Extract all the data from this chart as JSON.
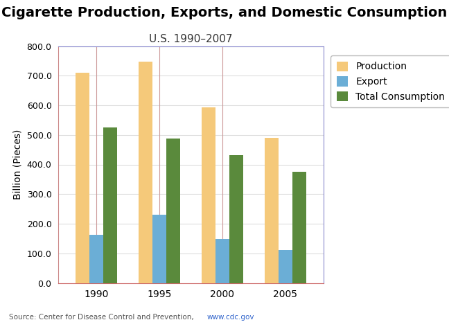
{
  "title_line1": "Cigarette Production, Exports, and Domestic Consumption",
  "title_line2": "U.S. 1990–2007",
  "years": [
    1990,
    1995,
    2000,
    2005
  ],
  "production": [
    710,
    747,
    594,
    490
  ],
  "export": [
    163,
    231,
    148,
    112
  ],
  "total_consumption": [
    525,
    487,
    432,
    375
  ],
  "bar_colors": {
    "production": "#F5C97A",
    "export": "#6BAED6",
    "total_consumption": "#5A8A3C"
  },
  "ylabel": "Billion (Pieces)",
  "ylim": [
    0,
    800
  ],
  "yticks": [
    0,
    100,
    200,
    300,
    400,
    500,
    600,
    700,
    800
  ],
  "ytick_labels": [
    "0.0",
    "100.0",
    "200.0",
    "300.0",
    "400.0",
    "500.0",
    "600.0",
    "700.0",
    "800.0"
  ],
  "source_text": "Source: Center for Disease Control and Prevention,  ",
  "source_link": "www.cdc.gov",
  "legend_labels": [
    "Production",
    "Export",
    "Total Consumption"
  ],
  "background_color": "#FFFFFF",
  "plot_bg_color": "#FFFFFF",
  "title_fontsize": 14,
  "subtitle_fontsize": 11,
  "axis_label_fontsize": 10,
  "tick_fontsize": 9,
  "legend_fontsize": 10,
  "bar_width": 0.22,
  "spine_top_color": "#8888CC",
  "spine_right_color": "#8888CC",
  "spine_left_color": "#CC8888",
  "spine_bottom_color": "#CC6666",
  "separator_color": "#CC9999",
  "grid_color": "#DDDDDD"
}
